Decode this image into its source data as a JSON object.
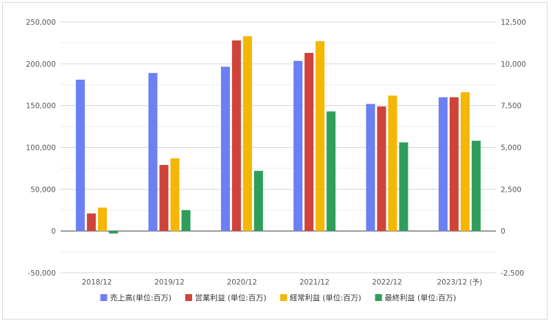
{
  "chart_data": {
    "type": "bar",
    "categories": [
      "2018/12",
      "2019/12",
      "2020/12",
      "2021/12",
      "2022/12",
      "2023/12 (予)"
    ],
    "series": [
      {
        "name": "売上高(単位:百万)",
        "axis": "left",
        "color": "#6b80f2",
        "values": [
          181000,
          189000,
          196500,
          203500,
          152000,
          160000
        ]
      },
      {
        "name": "営業利益 (単位:百万)",
        "axis": "right",
        "color": "#d0433a",
        "values": [
          1050,
          3950,
          11400,
          10650,
          7450,
          8000
        ]
      },
      {
        "name": "経常利益 (単位:百万)",
        "axis": "right",
        "color": "#f4b705",
        "values": [
          1400,
          4350,
          11650,
          11350,
          8100,
          8300
        ]
      },
      {
        "name": "最終利益 (単位:百万)",
        "axis": "right",
        "color": "#2f9e5b",
        "values": [
          -150,
          1250,
          3600,
          7150,
          5300,
          5400
        ]
      }
    ],
    "y_left": {
      "lim": [
        -50000,
        250000
      ],
      "ticks": [
        -50000,
        0,
        50000,
        100000,
        150000,
        200000,
        250000
      ],
      "tick_labels": [
        "-50,000",
        "0",
        "50,000",
        "100,000",
        "150,000",
        "200,000",
        "250,000"
      ]
    },
    "y_right": {
      "lim": [
        -2500,
        12500
      ],
      "ticks": [
        -2500,
        0,
        2500,
        5000,
        7500,
        10000,
        12500
      ],
      "tick_labels": [
        "-2,500",
        "0",
        "2,500",
        "5,000",
        "7,500",
        "10,000",
        "12,500"
      ]
    },
    "grid": true,
    "legend_position": "bottom",
    "title": "",
    "xlabel": "",
    "ylabel": ""
  }
}
